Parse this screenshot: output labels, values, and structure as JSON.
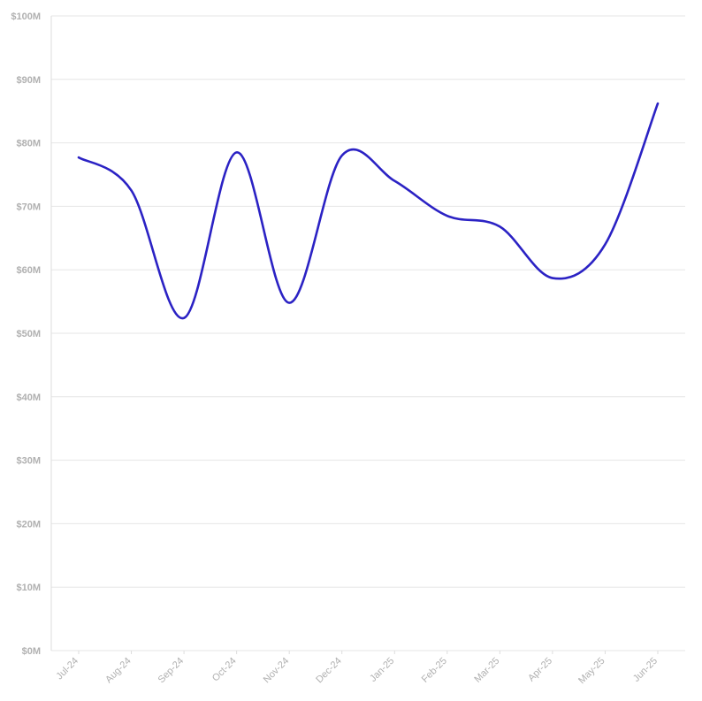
{
  "chart_data": {
    "type": "line",
    "title": "",
    "xlabel": "",
    "ylabel": "",
    "categories": [
      "Jul-24",
      "Aug-24",
      "Sep-24",
      "Oct-24",
      "Nov-24",
      "Dec-24",
      "Jan-25",
      "Feb-25",
      "Mar-25",
      "Apr-25",
      "May-25",
      "Jun-25"
    ],
    "series": [
      {
        "values": [
          77.7,
          72.5,
          52.4,
          78.5,
          54.8,
          78.0,
          74.0,
          68.5,
          66.8,
          58.7,
          64.0,
          86.2
        ],
        "color": "#2b22c4"
      }
    ],
    "ylim": [
      0,
      100
    ],
    "y_ticks": [
      0,
      10,
      20,
      30,
      40,
      50,
      60,
      70,
      80,
      90,
      100
    ],
    "y_tick_labels": [
      "$0M",
      "$10M",
      "$20M",
      "$30M",
      "$40M",
      "$50M",
      "$60M",
      "$70M",
      "$80M",
      "$90M",
      "$100M"
    ],
    "grid": true,
    "legend": "none",
    "colors": {
      "line": "#2b22c4",
      "grid": "#e6e6e6",
      "tick_text": "#b0b0b0"
    }
  }
}
